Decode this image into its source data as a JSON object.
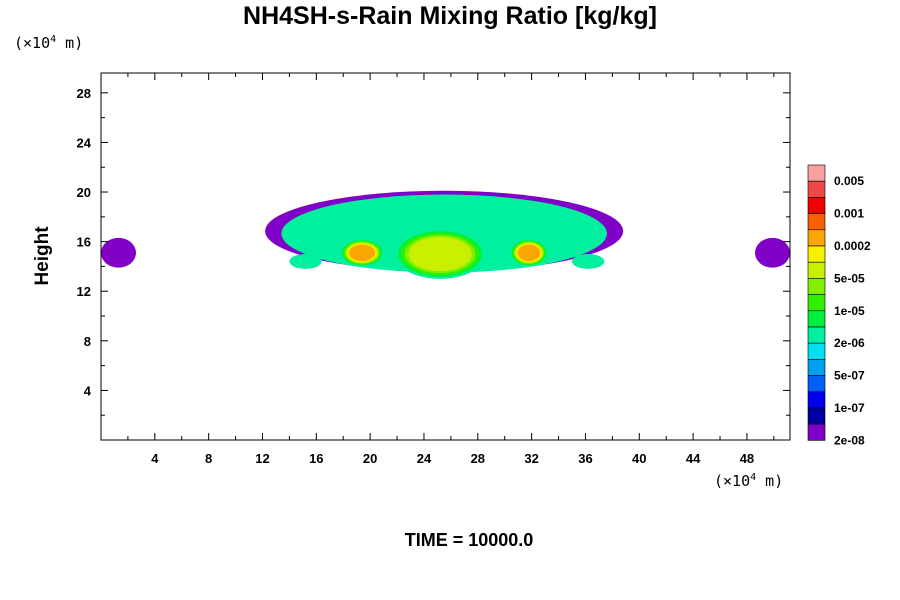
{
  "chart_data": {
    "type": "heatmap",
    "title": "NH4SH-s-Rain Mixing Ratio [kg/kg]",
    "ylabel": "Height",
    "xlabel": "",
    "x_unit": "(×10⁴ m)",
    "y_unit": "(×10⁴ m)",
    "xlim": [
      0,
      51.2
    ],
    "ylim": [
      0,
      29.6
    ],
    "x_ticks": [
      4,
      8,
      12,
      16,
      20,
      24,
      28,
      32,
      36,
      40,
      44,
      48
    ],
    "y_ticks": [
      4,
      8,
      12,
      16,
      20,
      24,
      28
    ],
    "time_label": "TIME = 10000.0",
    "colorbar": {
      "labels": [
        "0.005",
        "0.001",
        "0.0002",
        "5e-05",
        "1e-05",
        "2e-06",
        "5e-07",
        "1e-07",
        "2e-08"
      ],
      "colors": [
        "#f8a0a0",
        "#f04848",
        "#f00000",
        "#f86000",
        "#f8a800",
        "#f8f000",
        "#c8f000",
        "#80f000",
        "#30f000",
        "#00f040",
        "#00f0a0",
        "#00e0f0",
        "#00a0f0",
        "#0060f8",
        "#0000f0",
        "#0000a0",
        "#8000c8"
      ]
    },
    "regions": [
      {
        "level": "1e-07",
        "x": [
          12.2,
          38.8
        ],
        "y": [
          13.6,
          20.1
        ]
      },
      {
        "level": "1e-05",
        "x": [
          13.4,
          37.6
        ],
        "y": [
          13.5,
          19.8
        ]
      },
      {
        "level": "0.0002",
        "x": [
          21.8,
          28.6
        ],
        "y": [
          13.0,
          17.0
        ]
      },
      {
        "level": "0.001",
        "x": [
          17.8,
          21.0
        ],
        "y": [
          14.0,
          16.2
        ]
      },
      {
        "level": "0.001",
        "x": [
          30.4,
          33.2
        ],
        "y": [
          14.0,
          16.2
        ]
      },
      {
        "level": "1e-07",
        "x": [
          0,
          2.6
        ],
        "y": [
          13.9,
          16.3
        ]
      },
      {
        "level": "1e-07",
        "x": [
          48.6,
          51.2
        ],
        "y": [
          13.9,
          16.3
        ]
      },
      {
        "level": "1e-05",
        "x": [
          14.0,
          16.4
        ],
        "y": [
          13.8,
          15.0
        ]
      },
      {
        "level": "1e-05",
        "x": [
          35.0,
          37.4
        ],
        "y": [
          13.8,
          15.0
        ]
      }
    ]
  }
}
